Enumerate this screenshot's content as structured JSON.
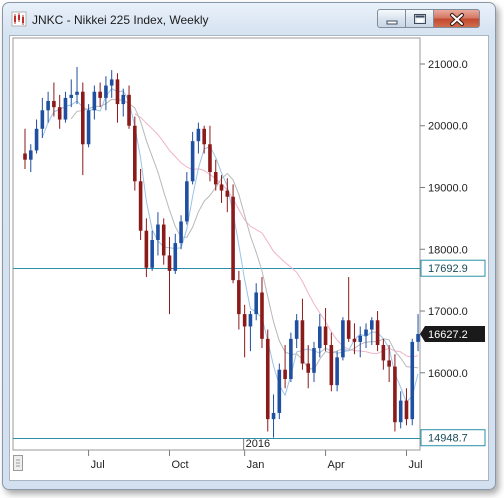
{
  "window": {
    "title": "JNKC - Nikkei 225 Index, Weekly"
  },
  "colors": {
    "up_candle": "#1f4fa0",
    "down_candle": "#8b1a1a",
    "sma_fast": "#9cc2e6",
    "sma_mid": "#b8b8b8",
    "sma_slow": "#f0b2c8",
    "horizontal_line": "#2a8fa8",
    "current_price_tag": "#1a1a1a"
  },
  "chart_data": {
    "type": "candlestick",
    "symbol": "JNKC",
    "instrument": "Nikkei 225 Index",
    "timeframe": "Weekly",
    "ylim": [
      14750,
      21420
    ],
    "y_ticks": [
      "21000.0",
      "20000.0",
      "19000.0",
      "18000.0",
      "17000.0",
      "16000.0"
    ],
    "x_labels": [
      "Jul",
      "Oct",
      "Jan",
      "Apr",
      "Jul"
    ],
    "year_label": "2016",
    "horizontal_lines": [
      17692.9,
      14948.7
    ],
    "horizontal_line_labels": [
      "17692.9",
      "14948.7"
    ],
    "current_price": "16627.2",
    "current_price_value": 16627.2,
    "candles": [
      [
        19550,
        19950,
        19300,
        19450
      ],
      [
        19450,
        19700,
        19250,
        19600
      ],
      [
        19600,
        20100,
        19550,
        19950
      ],
      [
        19950,
        20450,
        19800,
        20250
      ],
      [
        20250,
        20550,
        20050,
        20400
      ],
      [
        20400,
        20700,
        20150,
        20300
      ],
      [
        20300,
        20500,
        19950,
        20100
      ],
      [
        20100,
        20550,
        20050,
        20450
      ],
      [
        20450,
        20750,
        20300,
        20500
      ],
      [
        20500,
        20950,
        20350,
        20550
      ],
      [
        20550,
        20700,
        19200,
        19700
      ],
      [
        19700,
        20350,
        19650,
        20250
      ],
      [
        20250,
        20650,
        20100,
        20550
      ],
      [
        20550,
        20700,
        20300,
        20450
      ],
      [
        20450,
        20800,
        20250,
        20650
      ],
      [
        20650,
        20900,
        20450,
        20750
      ],
      [
        20750,
        20850,
        20050,
        20350
      ],
      [
        20350,
        20600,
        20150,
        20500
      ],
      [
        20500,
        20650,
        19950,
        20000
      ],
      [
        20000,
        20150,
        18950,
        19100
      ],
      [
        19100,
        19300,
        18150,
        18300
      ],
      [
        18300,
        18500,
        17550,
        17700
      ],
      [
        17700,
        18300,
        17650,
        18150
      ],
      [
        18150,
        18600,
        17900,
        18400
      ],
      [
        18400,
        18500,
        17750,
        17900
      ],
      [
        17900,
        18200,
        16950,
        17650
      ],
      [
        17650,
        18250,
        17600,
        18100
      ],
      [
        18100,
        18550,
        18000,
        18450
      ],
      [
        18450,
        19250,
        18400,
        19100
      ],
      [
        19100,
        19900,
        19050,
        19750
      ],
      [
        19750,
        20050,
        19550,
        19950
      ],
      [
        19950,
        20000,
        19550,
        19700
      ],
      [
        19700,
        20000,
        19100,
        19250
      ],
      [
        19250,
        19450,
        18950,
        19050
      ],
      [
        19050,
        19200,
        18750,
        18950
      ],
      [
        18950,
        19150,
        18600,
        18850
      ],
      [
        18850,
        19050,
        17450,
        17500
      ],
      [
        17500,
        17650,
        16700,
        16950
      ],
      [
        16950,
        17100,
        16250,
        16750
      ],
      [
        16750,
        17000,
        16350,
        16950
      ],
      [
        16950,
        17450,
        16850,
        17300
      ],
      [
        17300,
        17550,
        16400,
        16550
      ],
      [
        16550,
        16700,
        15050,
        15250
      ],
      [
        15250,
        15650,
        14950,
        15350
      ],
      [
        15350,
        16150,
        15250,
        16050
      ],
      [
        16050,
        16450,
        15750,
        15900
      ],
      [
        15900,
        16650,
        15850,
        16550
      ],
      [
        16550,
        16950,
        16400,
        16850
      ],
      [
        16850,
        17200,
        16050,
        16150
      ],
      [
        16150,
        16450,
        15750,
        16000
      ],
      [
        16000,
        16500,
        15850,
        16400
      ],
      [
        16400,
        16950,
        16250,
        16750
      ],
      [
        16750,
        17050,
        16350,
        16450
      ],
      [
        16450,
        16650,
        15700,
        15800
      ],
      [
        15800,
        16350,
        15700,
        16250
      ],
      [
        16250,
        16900,
        16200,
        16850
      ],
      [
        16850,
        17550,
        16500,
        16550
      ],
      [
        16550,
        16800,
        16300,
        16500
      ],
      [
        16500,
        16750,
        16250,
        16600
      ],
      [
        16600,
        16800,
        16400,
        16700
      ],
      [
        16700,
        16900,
        16450,
        16850
      ],
      [
        16850,
        17000,
        16350,
        16450
      ],
      [
        16450,
        16550,
        16050,
        16200
      ],
      [
        16200,
        16450,
        15850,
        16100
      ],
      [
        16100,
        16300,
        15050,
        15200
      ],
      [
        15200,
        15700,
        15100,
        15550
      ],
      [
        15550,
        15750,
        15150,
        15250
      ],
      [
        15250,
        16550,
        15150,
        16500
      ],
      [
        16500,
        16950,
        16350,
        16627.2
      ]
    ]
  }
}
